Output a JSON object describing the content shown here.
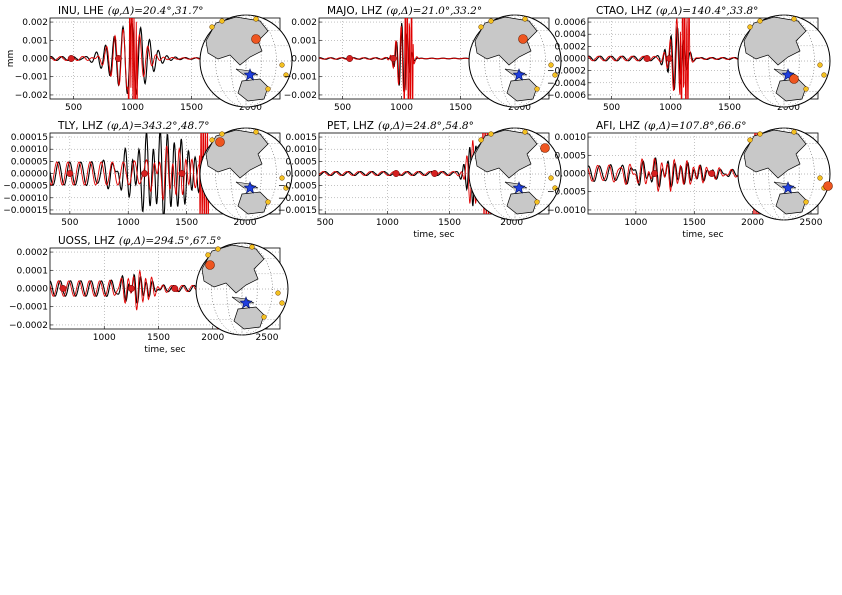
{
  "chart_data": [
    {
      "type": "line",
      "station": "INU, LHE",
      "params": "(φ,Δ)=20.4°,31.7°",
      "ylabel": "mm",
      "xlabel": "",
      "xticks": [
        "500",
        "1000",
        "1500",
        "2000"
      ],
      "yticks": [
        "−0.002",
        "−0.001",
        "0.000",
        "0.001",
        "0.002"
      ],
      "xlim": [
        300,
        2250
      ],
      "ylim": [
        -0.0023,
        0.0023
      ],
      "grid": true,
      "series": [
        {
          "color": "#000000",
          "values": []
        },
        {
          "color": "#e00000",
          "values": []
        }
      ]
    },
    {
      "type": "line",
      "station": "MAJO, LHZ",
      "params": "(φ,Δ)=21.0°,33.2°",
      "ylabel": "",
      "xlabel": "",
      "xticks": [
        "500",
        "1000",
        "1500",
        "2000"
      ],
      "yticks": [
        "−0.002",
        "−0.001",
        "0.000",
        "0.001",
        "0.002"
      ],
      "xlim": [
        300,
        2250
      ],
      "ylim": [
        -0.0023,
        0.0023
      ],
      "grid": true,
      "series": [
        {
          "color": "#000000",
          "values": []
        },
        {
          "color": "#e00000",
          "values": []
        }
      ]
    },
    {
      "type": "line",
      "station": "CTAO, LHZ",
      "params": "(φ,Δ)=140.4°,33.8°",
      "ylabel": "",
      "xlabel": "",
      "xticks": [
        "500",
        "1000",
        "1500",
        "2000"
      ],
      "yticks": [
        "−0.0006",
        "−0.0004",
        "−0.0002",
        "0.0000",
        "0.0002",
        "0.0004",
        "0.0006"
      ],
      "xlim": [
        300,
        2250
      ],
      "ylim": [
        -0.0006,
        0.0006
      ],
      "grid": true,
      "series": [
        {
          "color": "#000000",
          "values": []
        },
        {
          "color": "#e00000",
          "values": []
        }
      ]
    },
    {
      "type": "line",
      "station": "TLY, LHZ",
      "params": "(φ,Δ)=343.2°,48.7°",
      "ylabel": "",
      "xlabel": "",
      "xticks": [
        "500",
        "1000",
        "1500",
        "2000"
      ],
      "yticks": [
        "−0.00015",
        "−0.00010",
        "−0.00005",
        "0.00000",
        "0.00005",
        "0.00010",
        "0.00015"
      ],
      "xlim": [
        330,
        2300
      ],
      "ylim": [
        -0.00016,
        0.00016
      ],
      "grid": true,
      "series": [
        {
          "color": "#000000",
          "values": []
        },
        {
          "color": "#e00000",
          "values": []
        }
      ]
    },
    {
      "type": "line",
      "station": "PET, LHZ",
      "params": "(φ,Δ)=24.8°,54.8°",
      "ylabel": "",
      "xlabel": "time, sec",
      "xticks": [
        "500",
        "1000",
        "1500",
        "2000"
      ],
      "yticks": [
        "−0.0015",
        "−0.0010",
        "−0.0005",
        "0.0000",
        "0.0005",
        "0.0010",
        "0.0015"
      ],
      "xlim": [
        450,
        2300
      ],
      "ylim": [
        -0.0016,
        0.0016
      ],
      "grid": true,
      "series": [
        {
          "color": "#000000",
          "values": []
        },
        {
          "color": "#e00000",
          "values": []
        }
      ]
    },
    {
      "type": "line",
      "station": "AFI, LHZ",
      "params": "(φ,Δ)=107.8°,66.6°",
      "ylabel": "",
      "xlabel": "time, sec",
      "xticks": [
        "1000",
        "1500",
        "2000",
        "2500"
      ],
      "yticks": [
        "−0.0010",
        "−0.0005",
        "0.0000",
        "0.0005",
        "0.0010"
      ],
      "xlim": [
        590,
        2560
      ],
      "ylim": [
        -0.00105,
        0.00105
      ],
      "grid": true,
      "series": [
        {
          "color": "#000000",
          "values": []
        },
        {
          "color": "#e00000",
          "values": []
        }
      ]
    },
    {
      "type": "line",
      "station": "UOSS, LHZ",
      "params": "(φ,Δ)=294.5°,67.5°",
      "ylabel": "",
      "xlabel": "time, sec",
      "xticks": [
        "1000",
        "1500",
        "2000",
        "2500"
      ],
      "yticks": [
        "−0.0002",
        "−0.0001",
        "0.0000",
        "0.0001",
        "0.0002"
      ],
      "xlim": [
        500,
        2620
      ],
      "ylim": [
        -0.00028,
        0.00028
      ],
      "grid": true,
      "series": [
        {
          "color": "#000000",
          "values": []
        },
        {
          "color": "#e00000",
          "values": []
        }
      ]
    }
  ]
}
